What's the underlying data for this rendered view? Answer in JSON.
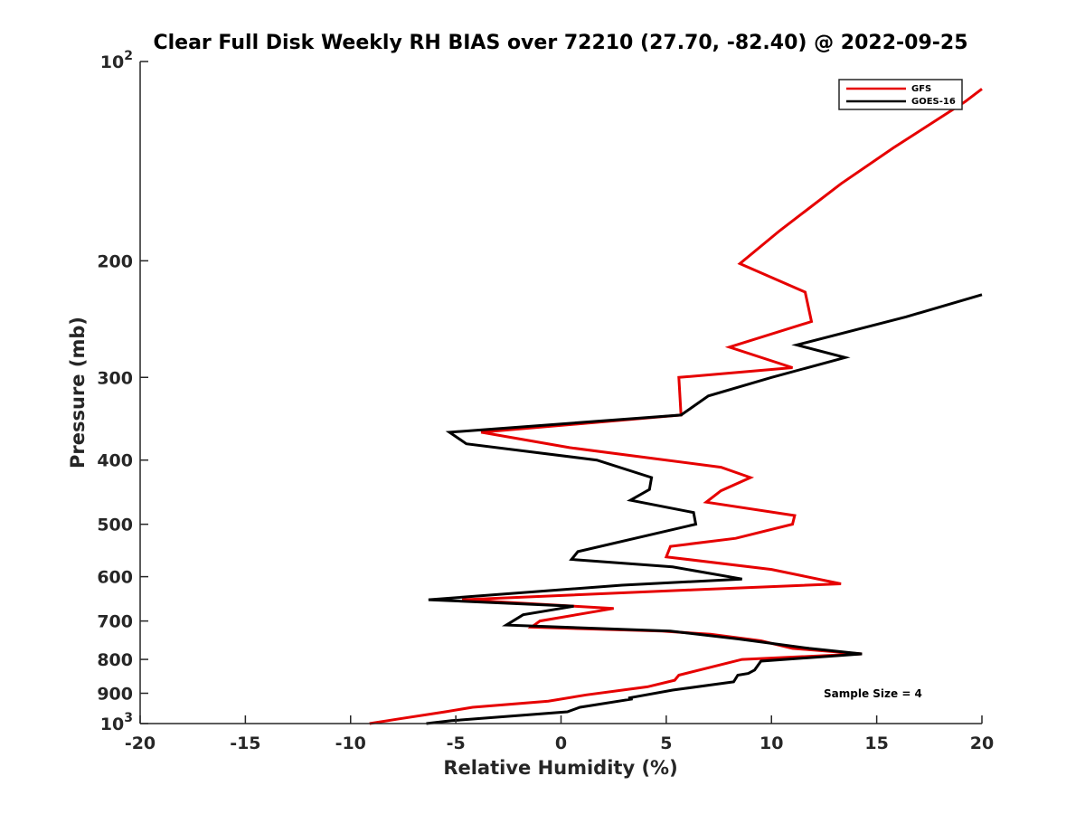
{
  "chart_data": {
    "type": "line",
    "title": "Clear Full Disk Weekly RH BIAS over 72210 (27.70, -82.40) @ 2022-09-25",
    "xlabel": "Relative Humidity (%)",
    "ylabel": "Pressure (mb)",
    "xlim": [
      -20,
      20
    ],
    "ylim": [
      100,
      1000
    ],
    "y_scale": "log",
    "y_reversed": true,
    "grid": false,
    "legend_position": "top-right",
    "x_ticks": [
      "-20",
      "-15",
      "-10",
      "-5",
      "0",
      "5",
      "10",
      "15",
      "20"
    ],
    "y_ticks": [
      {
        "value": 100,
        "base": "10",
        "exp": "2"
      },
      {
        "value": 200,
        "base": "200",
        "exp": ""
      },
      {
        "value": 300,
        "base": "300",
        "exp": ""
      },
      {
        "value": 400,
        "base": "400",
        "exp": ""
      },
      {
        "value": 500,
        "base": "500",
        "exp": ""
      },
      {
        "value": 600,
        "base": "600",
        "exp": ""
      },
      {
        "value": 700,
        "base": "700",
        "exp": ""
      },
      {
        "value": 800,
        "base": "800",
        "exp": ""
      },
      {
        "value": 900,
        "base": "900",
        "exp": ""
      },
      {
        "value": 1000,
        "base": "10",
        "exp": "3"
      }
    ],
    "annotation": "Sample Size = 4",
    "series": [
      {
        "name": "GFS",
        "color": "#e60000",
        "points": [
          [
            20.0,
            110
          ],
          [
            19.2,
            115
          ],
          [
            15.8,
            135
          ],
          [
            13.3,
            153
          ],
          [
            10.4,
            180
          ],
          [
            8.5,
            202
          ],
          [
            11.6,
            223
          ],
          [
            11.9,
            247
          ],
          [
            8.0,
            270
          ],
          [
            11.0,
            290
          ],
          [
            5.6,
            300
          ],
          [
            5.7,
            342
          ],
          [
            -3.8,
            363
          ],
          [
            0.4,
            383
          ],
          [
            7.6,
            410
          ],
          [
            9.0,
            425
          ],
          [
            7.6,
            445
          ],
          [
            6.9,
            463
          ],
          [
            11.1,
            485
          ],
          [
            11.0,
            500
          ],
          [
            8.3,
            525
          ],
          [
            5.2,
            540
          ],
          [
            5.0,
            560
          ],
          [
            10.0,
            585
          ],
          [
            13.3,
            615
          ],
          [
            6.3,
            628
          ],
          [
            -4.7,
            650
          ],
          [
            2.5,
            670
          ],
          [
            -1.0,
            700
          ],
          [
            -1.4,
            715
          ],
          [
            4.8,
            725
          ],
          [
            7.1,
            733
          ],
          [
            9.5,
            750
          ],
          [
            11.0,
            770
          ],
          [
            14.3,
            785
          ],
          [
            8.6,
            800
          ],
          [
            5.6,
            845
          ],
          [
            5.4,
            860
          ],
          [
            4.1,
            880
          ],
          [
            1.2,
            905
          ],
          [
            -0.6,
            925
          ],
          [
            -4.2,
            945
          ],
          [
            -5.5,
            960
          ],
          [
            -7.8,
            985
          ],
          [
            -9.1,
            1000
          ]
        ]
      },
      {
        "name": "GOES-16",
        "color": "#000000",
        "points": [
          [
            20.0,
            225
          ],
          [
            16.4,
            243
          ],
          [
            11.2,
            268
          ],
          [
            13.5,
            280
          ],
          [
            10.0,
            300
          ],
          [
            7.0,
            320
          ],
          [
            5.7,
            342
          ],
          [
            -5.3,
            363
          ],
          [
            -4.5,
            378
          ],
          [
            1.7,
            400
          ],
          [
            4.3,
            425
          ],
          [
            4.2,
            443
          ],
          [
            3.3,
            460
          ],
          [
            6.3,
            480
          ],
          [
            6.4,
            500
          ],
          [
            0.8,
            550
          ],
          [
            0.5,
            565
          ],
          [
            5.3,
            580
          ],
          [
            8.6,
            605
          ],
          [
            2.9,
            618
          ],
          [
            -6.3,
            650
          ],
          [
            0.6,
            665
          ],
          [
            -1.8,
            685
          ],
          [
            -2.6,
            710
          ],
          [
            5.2,
            725
          ],
          [
            8.4,
            745
          ],
          [
            11.8,
            770
          ],
          [
            14.3,
            785
          ],
          [
            9.5,
            805
          ],
          [
            9.2,
            830
          ],
          [
            8.9,
            840
          ],
          [
            8.4,
            845
          ],
          [
            8.2,
            865
          ],
          [
            5.3,
            890
          ],
          [
            3.2,
            915
          ],
          [
            3.4,
            918
          ],
          [
            0.9,
            945
          ],
          [
            0.3,
            960
          ],
          [
            -5.2,
            990
          ],
          [
            -6.4,
            1000
          ]
        ]
      }
    ]
  }
}
